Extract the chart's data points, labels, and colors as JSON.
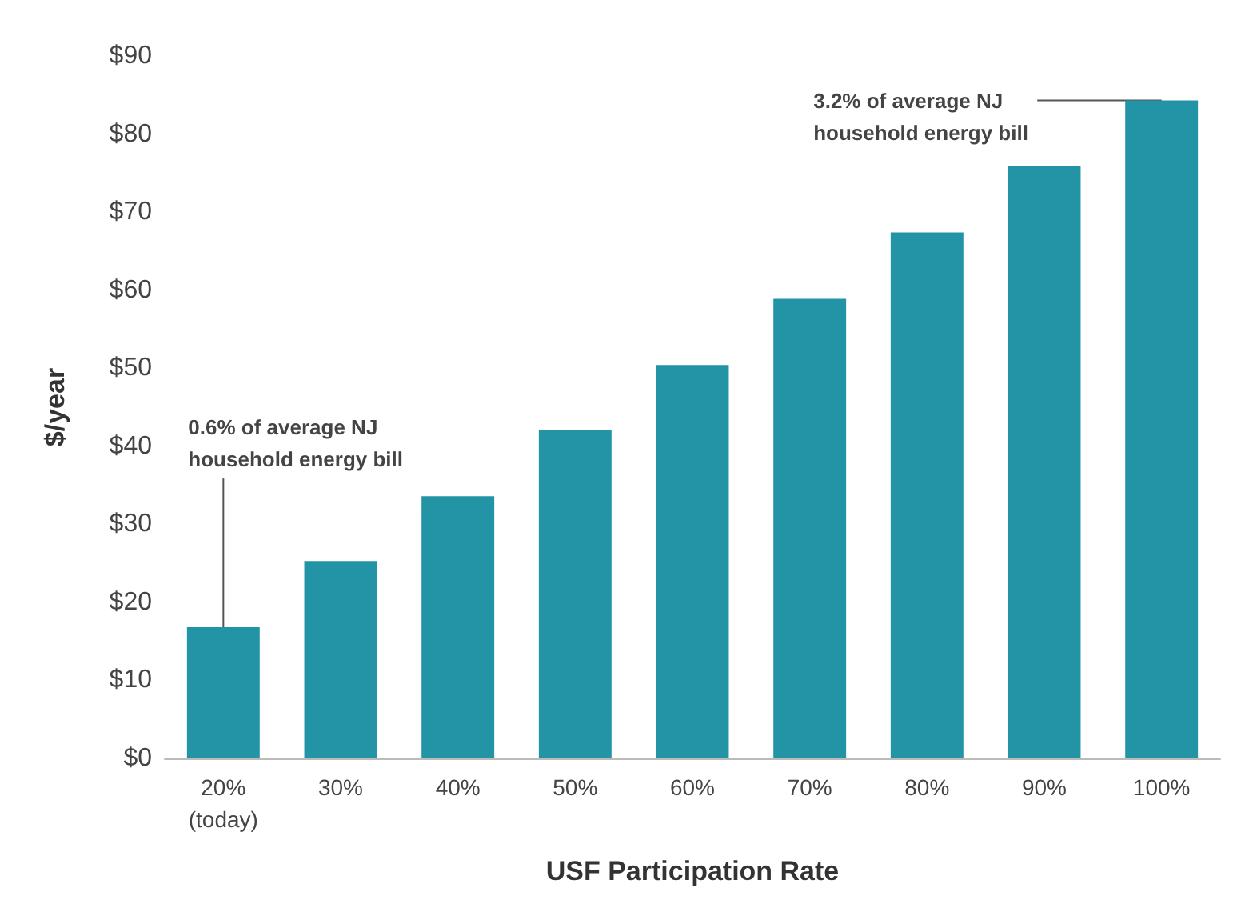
{
  "chart_data": {
    "type": "bar",
    "xlabel": "USF Participation Rate",
    "ylabel": "$/year",
    "categories": [
      "20%\n(today)",
      "30%",
      "40%",
      "50%",
      "60%",
      "70%",
      "80%",
      "90%",
      "100%"
    ],
    "values": [
      16.8,
      25.3,
      33.6,
      42.1,
      50.4,
      58.9,
      67.4,
      75.9,
      84.3
    ],
    "color": "#2394a5",
    "ylim": [
      0,
      90
    ],
    "yticks": [
      {
        "value": 0,
        "label": "$0"
      },
      {
        "value": 10,
        "label": "$10"
      },
      {
        "value": 20,
        "label": "$20"
      },
      {
        "value": 30,
        "label": "$30"
      },
      {
        "value": 40,
        "label": "$40"
      },
      {
        "value": 50,
        "label": "$50"
      },
      {
        "value": 60,
        "label": "$60"
      },
      {
        "value": 70,
        "label": "$70"
      },
      {
        "value": 80,
        "label": "$80"
      },
      {
        "value": 90,
        "label": "$90"
      }
    ],
    "grid": false,
    "annotations": [
      {
        "text": "0.6% of average NJ\nhousehold energy bill",
        "x": "20%\n(today)",
        "y": 16.8
      },
      {
        "text": "3.2% of average NJ\nhousehold energy bill",
        "x": "100%",
        "y": 84.3
      }
    ]
  }
}
